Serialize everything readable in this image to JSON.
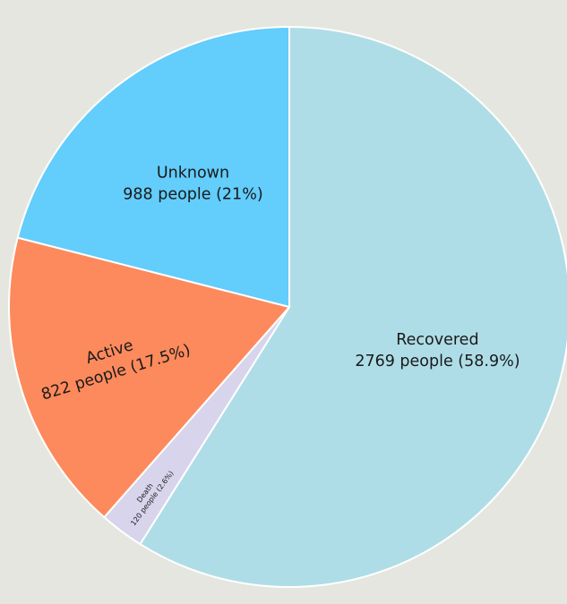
{
  "chart_data": {
    "type": "pie",
    "start": "top, clockwise",
    "slices": [
      {
        "name": "Recovered",
        "detail": "2769 people (58.9%)",
        "value": 2769,
        "percent": 58.9,
        "color": "#aedde7"
      },
      {
        "name": "Death",
        "detail": "120 people (2.6%)",
        "value": 120,
        "percent": 2.6,
        "color": "#d8d4ec"
      },
      {
        "name": "Active",
        "detail": "822 people (17.5%)",
        "value": 822,
        "percent": 17.5,
        "color": "#fd8a5c"
      },
      {
        "name": "Unknown",
        "detail": "988 people (21%)",
        "value": 988,
        "percent": 21,
        "color": "#63cdfb"
      }
    ]
  }
}
